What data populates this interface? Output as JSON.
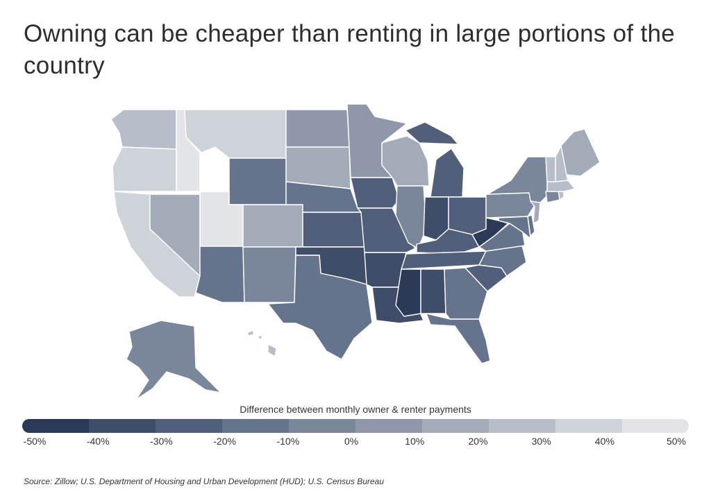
{
  "title": "Owning can be cheaper than renting in large portions of the country",
  "legend": {
    "title": "Difference between monthly owner & renter payments",
    "ticks": [
      "-50%",
      "-40%",
      "-30%",
      "-20%",
      "-10%",
      "0%",
      "10%",
      "20%",
      "30%",
      "40%",
      "50%"
    ],
    "colors": [
      "#2c3a57",
      "#3f4d69",
      "#515f7b",
      "#66738c",
      "#7a869b",
      "#8e98aa",
      "#a3abb9",
      "#b8bec9",
      "#ced2d9",
      "#e2e4e8"
    ]
  },
  "source": "Source:  Zillow; U.S. Department of Housing and Urban Development (HUD); U.S. Census Bureau",
  "states": {
    "WA": 25,
    "OR": 35,
    "ID": 45,
    "MT": 35,
    "WY": -15,
    "CA": 35,
    "NV": 10,
    "UT": 40,
    "CO": 15,
    "AZ": -15,
    "NM": -5,
    "ND": 5,
    "SD": 15,
    "NE": -15,
    "KS": -25,
    "OK": -35,
    "TX": -15,
    "MN": 5,
    "IA": -25,
    "MO": -25,
    "AR": -35,
    "LA": -35,
    "WI": 10,
    "IL": -5,
    "MI": -25,
    "IN": -35,
    "OH": -25,
    "KY": -30,
    "TN": -25,
    "MS": -45,
    "AL": -35,
    "GA": -15,
    "FL": -15,
    "SC": -25,
    "NC": -20,
    "VA": -15,
    "WV": -45,
    "PA": -5,
    "NY": -5,
    "ME": 10,
    "VT": 20,
    "NH": 20,
    "MA": 20,
    "RI": 25,
    "CT": -5,
    "NJ": 15,
    "DE": -15,
    "MD": -15,
    "AK": -5,
    "HI": 25
  }
}
